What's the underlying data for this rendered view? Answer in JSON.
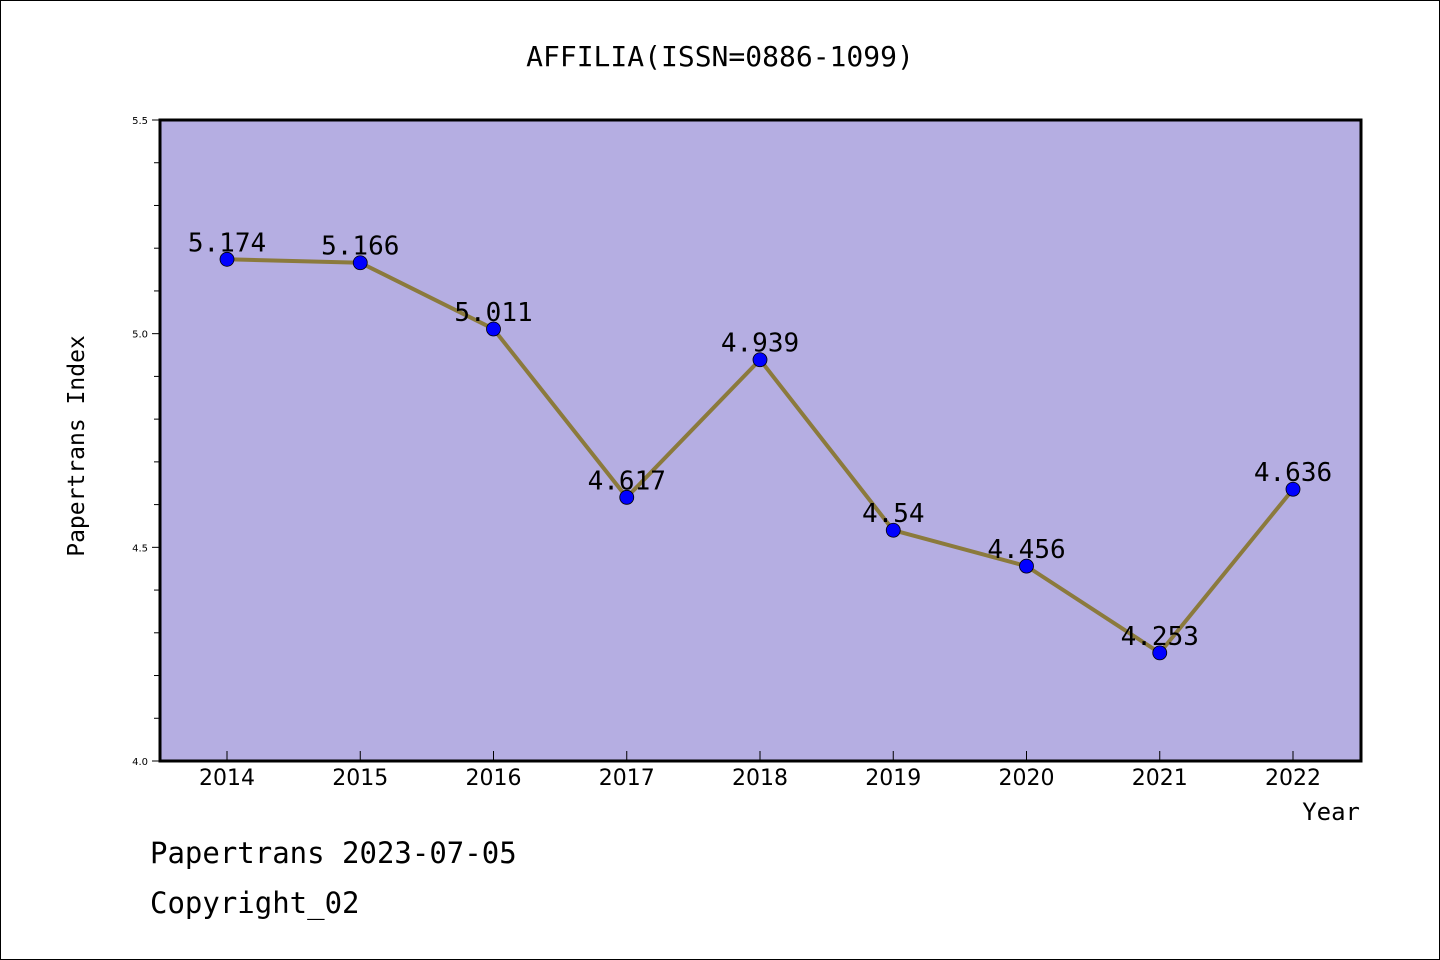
{
  "chart_data": {
    "type": "line",
    "title": "AFFILIA(ISSN=0886-1099)",
    "xlabel": "Year",
    "ylabel": "Papertrans Index",
    "categories": [
      "2014",
      "2015",
      "2016",
      "2017",
      "2018",
      "2019",
      "2020",
      "2021",
      "2022"
    ],
    "values": [
      5.174,
      5.166,
      5.011,
      4.617,
      4.939,
      4.54,
      4.456,
      4.253,
      4.636
    ],
    "data_labels": [
      "5.174",
      "5.166",
      "5.011",
      "4.617",
      "4.939",
      "4.54",
      "4.456",
      "4.253",
      "4.636"
    ],
    "ylim": [
      4.0,
      5.5
    ],
    "yticks": [
      "4.0",
      "4.5",
      "5.0",
      "5.5"
    ],
    "grid": false,
    "legend": "none",
    "colors": {
      "plot_background": "#b5aee2",
      "line": "#8b7a3c",
      "marker": "#0000ff"
    }
  },
  "footer": {
    "line1": "Papertrans 2023-07-05",
    "line2": "Copyright_02"
  }
}
